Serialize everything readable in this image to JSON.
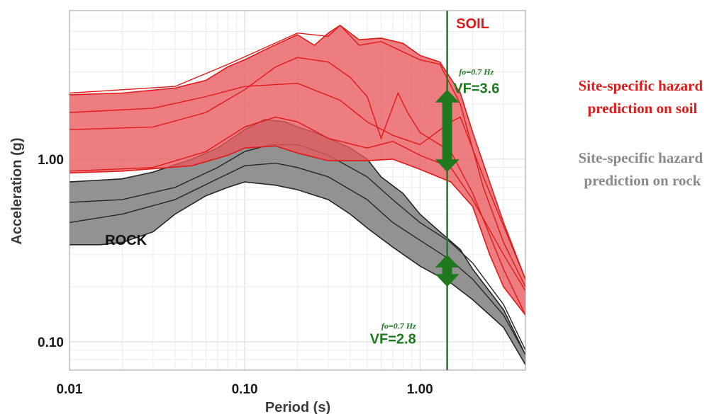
{
  "chart_data": {
    "type": "area",
    "x_scale": "log",
    "y_scale": "log",
    "xlim": [
      0.01,
      4.0
    ],
    "ylim": [
      0.07,
      6.5
    ],
    "xlabel": "Period (s)",
    "ylabel": "Acceleration (g)",
    "x_ticks": [
      {
        "value": 0.01,
        "label": "0.01"
      },
      {
        "value": 0.1,
        "label": "0.10"
      },
      {
        "value": 1.0,
        "label": "1.00"
      }
    ],
    "y_ticks": [
      {
        "value": 0.1,
        "label": "0.10"
      },
      {
        "value": 1.0,
        "label": "1.00"
      }
    ],
    "grid": true,
    "colors": {
      "soil_fill": "#e8585c",
      "soil_line": "#e01a1a",
      "rock_fill": "#8c8c8c",
      "rock_line": "#262626",
      "marker": "#1f7a1f"
    },
    "bands": [
      {
        "band": "soil",
        "lower": [
          [
            0.01,
            0.84
          ],
          [
            0.02,
            0.86
          ],
          [
            0.05,
            0.92
          ],
          [
            0.08,
            1.05
          ],
          [
            0.1,
            1.15
          ],
          [
            0.15,
            1.18
          ],
          [
            0.2,
            1.08
          ],
          [
            0.3,
            0.98
          ],
          [
            0.5,
            0.98
          ],
          [
            0.7,
            1.0
          ],
          [
            1.0,
            0.88
          ],
          [
            1.5,
            0.75
          ],
          [
            2.0,
            0.55
          ],
          [
            2.5,
            0.3
          ],
          [
            3.0,
            0.2
          ],
          [
            4.0,
            0.14
          ]
        ],
        "upper": [
          [
            0.01,
            2.25
          ],
          [
            0.02,
            2.3
          ],
          [
            0.04,
            2.45
          ],
          [
            0.06,
            2.7
          ],
          [
            0.08,
            3.2
          ],
          [
            0.1,
            3.5
          ],
          [
            0.14,
            4.1
          ],
          [
            0.2,
            4.8
          ],
          [
            0.25,
            4.2
          ],
          [
            0.3,
            4.9
          ],
          [
            0.35,
            5.4
          ],
          [
            0.45,
            4.5
          ],
          [
            0.6,
            4.6
          ],
          [
            0.8,
            4.3
          ],
          [
            1.0,
            3.7
          ],
          [
            1.3,
            3.4
          ],
          [
            1.7,
            2.3
          ],
          [
            2.0,
            1.4
          ],
          [
            3.0,
            0.45
          ],
          [
            4.0,
            0.22
          ]
        ],
        "curves": [
          [
            [
              0.01,
              2.3
            ],
            [
              0.04,
              2.5
            ],
            [
              0.08,
              3.3
            ],
            [
              0.14,
              4.2
            ],
            [
              0.2,
              4.9
            ],
            [
              0.3,
              4.7
            ],
            [
              0.35,
              5.4
            ],
            [
              0.45,
              4.2
            ],
            [
              0.6,
              4.4
            ],
            [
              1.0,
              3.5
            ],
            [
              1.3,
              3.3
            ],
            [
              1.7,
              2.0
            ],
            [
              2.3,
              0.7
            ],
            [
              3.0,
              0.35
            ],
            [
              4.0,
              0.2
            ]
          ],
          [
            [
              0.01,
              1.45
            ],
            [
              0.03,
              1.5
            ],
            [
              0.06,
              1.8
            ],
            [
              0.1,
              2.4
            ],
            [
              0.15,
              3.2
            ],
            [
              0.2,
              3.6
            ],
            [
              0.3,
              3.4
            ],
            [
              0.4,
              2.8
            ],
            [
              0.5,
              2.2
            ],
            [
              0.6,
              1.3
            ],
            [
              0.75,
              2.3
            ],
            [
              0.85,
              1.8
            ],
            [
              1.0,
              1.4
            ],
            [
              1.5,
              1.1
            ],
            [
              2.0,
              0.65
            ],
            [
              3.0,
              0.25
            ],
            [
              4.0,
              0.14
            ]
          ],
          [
            [
              0.01,
              0.86
            ],
            [
              0.03,
              0.9
            ],
            [
              0.06,
              1.1
            ],
            [
              0.1,
              1.5
            ],
            [
              0.15,
              1.7
            ],
            [
              0.2,
              1.6
            ],
            [
              0.3,
              1.3
            ],
            [
              0.5,
              1.15
            ],
            [
              0.7,
              1.25
            ],
            [
              1.0,
              1.05
            ],
            [
              1.5,
              0.9
            ],
            [
              2.0,
              0.6
            ],
            [
              3.0,
              0.3
            ],
            [
              4.0,
              0.19
            ]
          ],
          [
            [
              0.01,
              1.8
            ],
            [
              0.03,
              1.9
            ],
            [
              0.06,
              2.2
            ],
            [
              0.1,
              2.5
            ],
            [
              0.2,
              2.6
            ],
            [
              0.35,
              2.1
            ],
            [
              0.5,
              1.6
            ],
            [
              0.7,
              1.35
            ],
            [
              1.0,
              1.2
            ],
            [
              1.5,
              1.6
            ],
            [
              1.7,
              1.7
            ],
            [
              2.3,
              0.8
            ],
            [
              4.0,
              0.22
            ]
          ]
        ]
      },
      {
        "band": "rock",
        "lower": [
          [
            0.01,
            0.34
          ],
          [
            0.015,
            0.34
          ],
          [
            0.02,
            0.35
          ],
          [
            0.03,
            0.4
          ],
          [
            0.04,
            0.5
          ],
          [
            0.06,
            0.63
          ],
          [
            0.08,
            0.7
          ],
          [
            0.1,
            0.75
          ],
          [
            0.15,
            0.72
          ],
          [
            0.2,
            0.68
          ],
          [
            0.3,
            0.6
          ],
          [
            0.4,
            0.5
          ],
          [
            0.5,
            0.42
          ],
          [
            0.7,
            0.33
          ],
          [
            1.0,
            0.26
          ],
          [
            1.5,
            0.21
          ],
          [
            2.0,
            0.17
          ],
          [
            3.0,
            0.12
          ],
          [
            4.0,
            0.075
          ]
        ],
        "upper": [
          [
            0.01,
            0.75
          ],
          [
            0.02,
            0.78
          ],
          [
            0.03,
            0.85
          ],
          [
            0.05,
            1.0
          ],
          [
            0.07,
            1.15
          ],
          [
            0.1,
            1.45
          ],
          [
            0.13,
            1.65
          ],
          [
            0.17,
            1.6
          ],
          [
            0.2,
            1.5
          ],
          [
            0.25,
            1.4
          ],
          [
            0.3,
            1.3
          ],
          [
            0.4,
            1.15
          ],
          [
            0.5,
            1.0
          ],
          [
            0.6,
            0.8
          ],
          [
            0.8,
            0.65
          ],
          [
            1.0,
            0.5
          ],
          [
            1.3,
            0.4
          ],
          [
            1.7,
            0.32
          ],
          [
            2.0,
            0.25
          ],
          [
            3.0,
            0.15
          ],
          [
            4.0,
            0.085
          ]
        ],
        "curves": [
          [
            [
              0.01,
              0.58
            ],
            [
              0.02,
              0.6
            ],
            [
              0.04,
              0.7
            ],
            [
              0.07,
              0.9
            ],
            [
              0.1,
              1.1
            ],
            [
              0.14,
              1.2
            ],
            [
              0.2,
              1.2
            ],
            [
              0.3,
              1.05
            ],
            [
              0.5,
              0.8
            ],
            [
              0.7,
              0.6
            ],
            [
              1.0,
              0.45
            ],
            [
              1.5,
              0.35
            ],
            [
              2.0,
              0.27
            ],
            [
              3.0,
              0.16
            ],
            [
              4.0,
              0.09
            ]
          ],
          [
            [
              0.01,
              0.45
            ],
            [
              0.02,
              0.5
            ],
            [
              0.04,
              0.6
            ],
            [
              0.07,
              0.78
            ],
            [
              0.1,
              0.92
            ],
            [
              0.15,
              0.95
            ],
            [
              0.2,
              0.9
            ],
            [
              0.3,
              0.8
            ],
            [
              0.5,
              0.6
            ],
            [
              0.7,
              0.45
            ],
            [
              1.0,
              0.36
            ],
            [
              1.5,
              0.28
            ],
            [
              2.0,
              0.22
            ],
            [
              3.0,
              0.14
            ],
            [
              4.0,
              0.085
            ]
          ]
        ]
      }
    ],
    "vertical_line": {
      "x": 1.43
    },
    "markers": [
      {
        "band": "soil",
        "x": 1.43,
        "from": 0.85,
        "to": 2.4
      },
      {
        "band": "rock",
        "x": 1.43,
        "from": 0.2,
        "to": 0.3
      }
    ],
    "annotations": [
      {
        "id": "soil",
        "text": "SOIL",
        "x": 2.0,
        "y": 5.2,
        "color": "#e01a1a"
      },
      {
        "id": "rock",
        "text": "ROCK",
        "x": 0.021,
        "y": 0.34,
        "color": "#111111"
      },
      {
        "id": "fo_soil",
        "text": "fo=0.7 Hz",
        "x": 2.1,
        "y": 2.9
      },
      {
        "id": "vf_soil",
        "text": "VF=3.6",
        "x": 2.1,
        "y": 2.3
      },
      {
        "id": "fo_rock",
        "text": "fo=0.7 Hz",
        "x": 0.95,
        "y": 0.118
      },
      {
        "id": "vf_rock",
        "text": "VF=2.8",
        "x": 0.95,
        "y": 0.098
      }
    ]
  },
  "side_notes": {
    "soil": [
      "Site-specific hazard",
      "prediction on soil"
    ],
    "rock": [
      "Site-specific hazard",
      "prediction on rock"
    ]
  }
}
